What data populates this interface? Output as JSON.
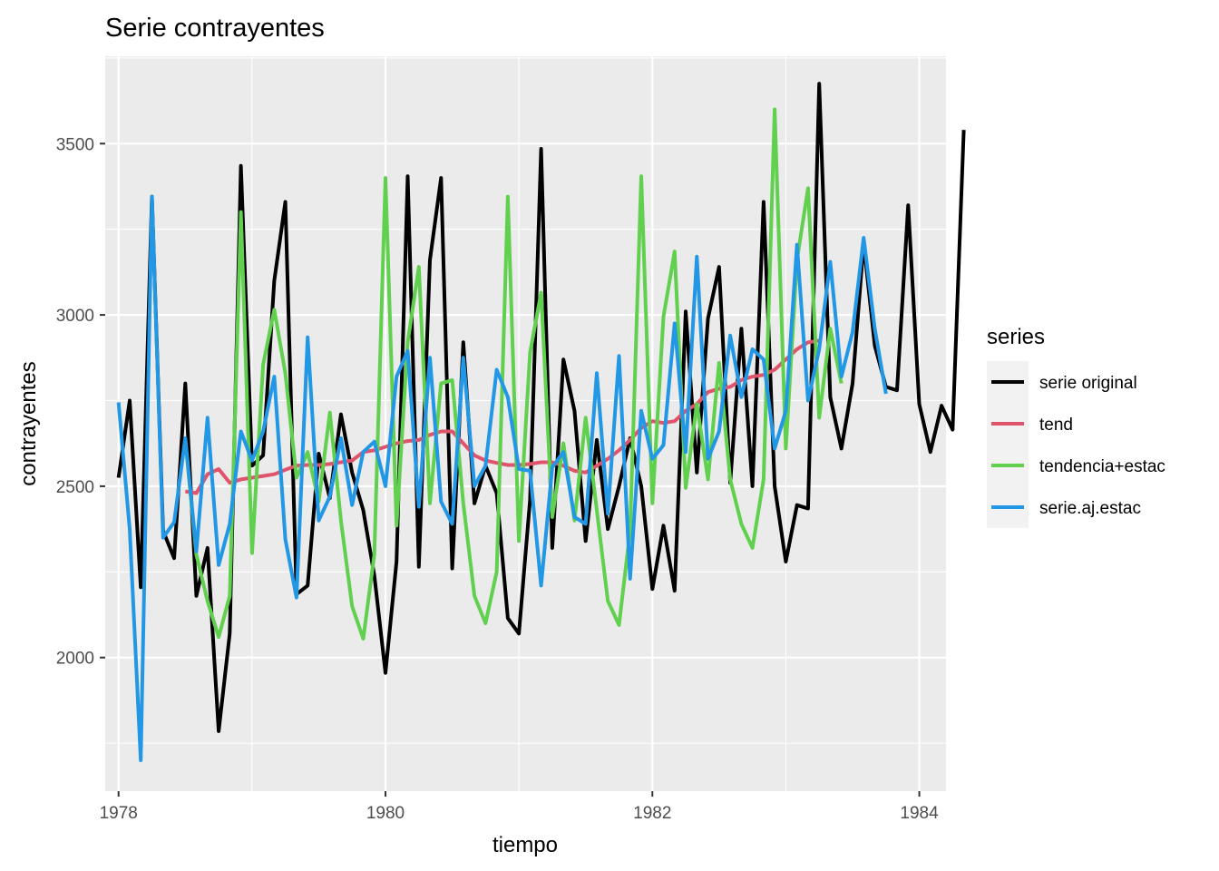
{
  "chart_data": {
    "type": "line",
    "title": "Serie contrayentes",
    "xlabel": "tiempo",
    "ylabel": "contrayentes",
    "xlim": [
      1977.9,
      1984.2
    ],
    "ylim": [
      1610,
      3755
    ],
    "x_ticks": [
      1978,
      1980,
      1982,
      1984
    ],
    "x_tick_labels": [
      "1978",
      "1980",
      "1982",
      "1984"
    ],
    "y_ticks": [
      2000,
      2500,
      3000,
      3500
    ],
    "y_tick_labels": [
      "2000",
      "2500",
      "3000",
      "3500"
    ],
    "grid": true,
    "legend_position": "right",
    "legend_title": "series",
    "x_start": 1978,
    "x_step": 0.08333,
    "series": [
      {
        "name": "serie original",
        "color": "#000000",
        "start_index": 0,
        "values": [
          2525,
          2750,
          2205,
          3345,
          2370,
          2290,
          2800,
          2180,
          2320,
          1785,
          2070,
          3435,
          2560,
          2590,
          3100,
          3330,
          2185,
          2210,
          2595,
          2465,
          2710,
          2540,
          2430,
          2240,
          1955,
          2280,
          3405,
          2265,
          3160,
          3400,
          2260,
          2920,
          2450,
          2560,
          2480,
          2115,
          2070,
          2460,
          3485,
          2320,
          2870,
          2720,
          2340,
          2635,
          2375,
          2500,
          2640,
          2500,
          2200,
          2385,
          2195,
          3010,
          2540,
          2990,
          3140,
          2510,
          2960,
          2500,
          3330,
          2500,
          2280,
          2445,
          2435,
          3675,
          2760,
          2610,
          2800,
          3210,
          2910,
          2790,
          2780,
          3320,
          2740,
          2600,
          2735,
          2665,
          3540
        ]
      },
      {
        "name": "tend",
        "color": "#DF536B",
        "start_index": 6,
        "values": [
          2485,
          2480,
          2535,
          2550,
          2510,
          2520,
          2525,
          2530,
          2535,
          2548,
          2560,
          2562,
          2562,
          2565,
          2570,
          2575,
          2600,
          2605,
          2615,
          2625,
          2632,
          2635,
          2650,
          2660,
          2660,
          2625,
          2590,
          2575,
          2568,
          2562,
          2562,
          2565,
          2570,
          2570,
          2560,
          2545,
          2540,
          2560,
          2580,
          2605,
          2635,
          2670,
          2690,
          2685,
          2690,
          2720,
          2740,
          2775,
          2785,
          2790,
          2810,
          2820,
          2825,
          2840,
          2870,
          2900,
          2920,
          2925
        ]
      },
      {
        "name": "tendencia+estac",
        "color": "#61D04F",
        "start_index": 6,
        "values": [
          2635,
          2300,
          2165,
          2060,
          2180,
          3300,
          2305,
          2855,
          3015,
          2830,
          2525,
          2600,
          2455,
          2715,
          2400,
          2150,
          2055,
          2300,
          3400,
          2385,
          2920,
          3140,
          2450,
          2800,
          2810,
          2450,
          2180,
          2100,
          2250,
          3345,
          2340,
          2890,
          3065,
          2410,
          2625,
          2400,
          2700,
          2430,
          2165,
          2095,
          2370,
          3405,
          2450,
          2995,
          3185,
          2495,
          2740,
          2520,
          2860,
          2520,
          2390,
          2320,
          2520,
          3600,
          2610,
          3160,
          3370,
          2700,
          2960,
          2800
        ]
      },
      {
        "name": "serie.aj.estac",
        "color": "#2297E6",
        "start_index": 0,
        "values": [
          2745,
          2375,
          1700,
          3345,
          2350,
          2395,
          2640,
          2310,
          2700,
          2270,
          2390,
          2660,
          2575,
          2660,
          2820,
          2345,
          2175,
          2935,
          2400,
          2470,
          2640,
          2445,
          2600,
          2630,
          2500,
          2820,
          2895,
          2440,
          2875,
          2455,
          2390,
          2875,
          2500,
          2560,
          2840,
          2760,
          2550,
          2545,
          2210,
          2555,
          2600,
          2410,
          2390,
          2830,
          2420,
          2880,
          2230,
          2720,
          2580,
          2620,
          2975,
          2600,
          3170,
          2580,
          2660,
          2940,
          2760,
          2900,
          2870,
          2610,
          2720,
          3205,
          2750,
          2900,
          3155,
          2820,
          2950,
          3225,
          2960,
          2770
        ]
      }
    ]
  }
}
